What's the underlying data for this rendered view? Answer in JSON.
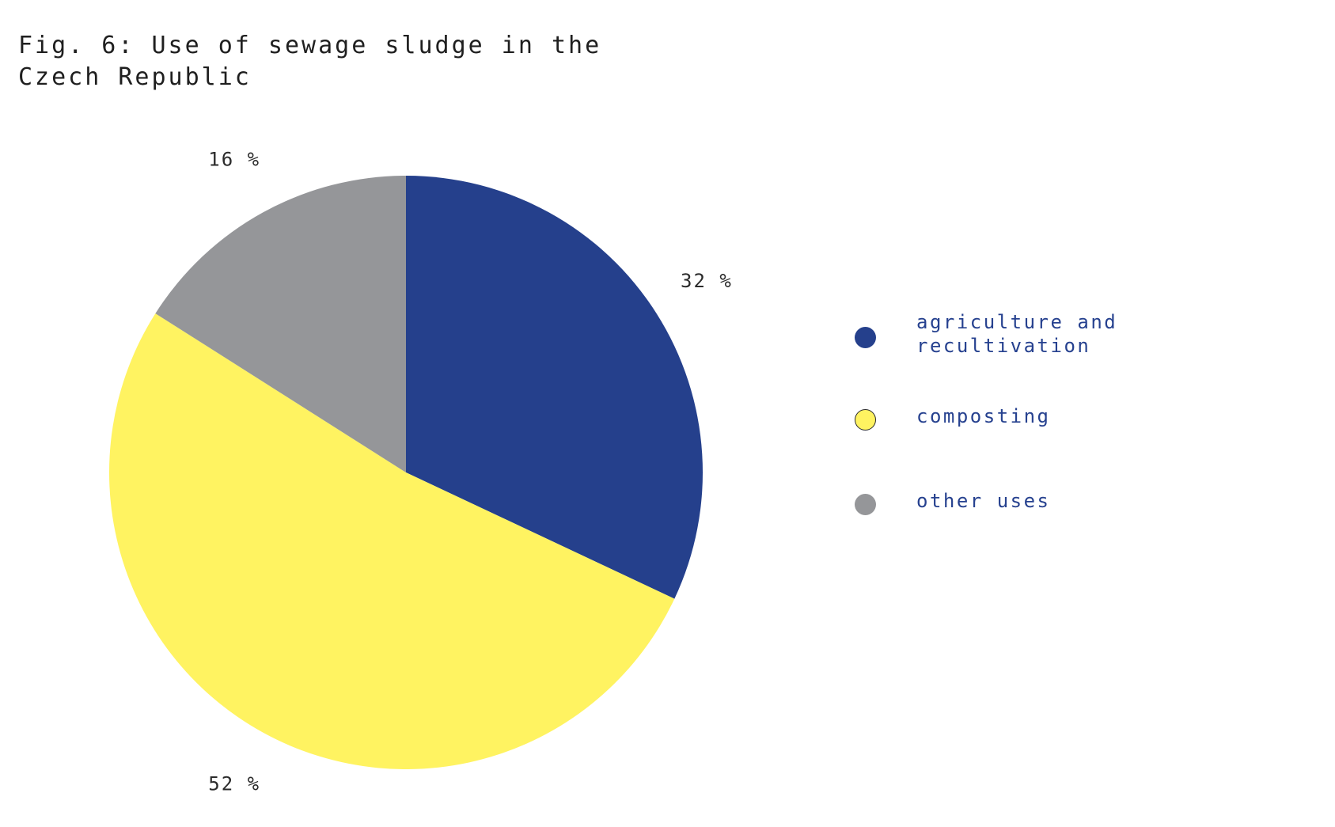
{
  "chart_data": {
    "type": "pie",
    "title_lines": [
      "Fig. 6: Use of sewage sludge in the",
      "Czech Republic"
    ],
    "slices": [
      {
        "label": "agriculture and recultivation",
        "value": 32,
        "value_label": "32 %",
        "color": "#25408c"
      },
      {
        "label": "composting",
        "value": 52,
        "value_label": "52 %",
        "color": "#fff361"
      },
      {
        "label": "other uses",
        "value": 16,
        "value_label": "16 %",
        "color": "#959699"
      }
    ],
    "legend_placement": "right",
    "start_angle_deg": 0,
    "direction": "clockwise"
  }
}
